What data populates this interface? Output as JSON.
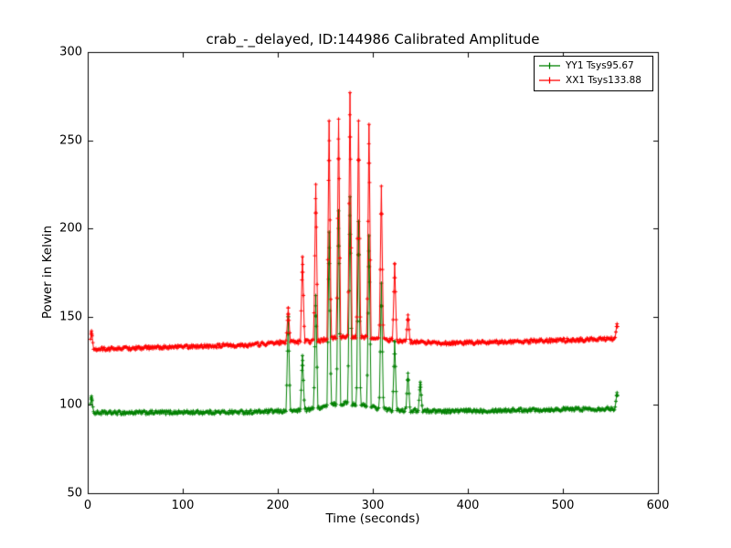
{
  "figure": {
    "title": "crab_-_delayed, ID:144986 Calibrated Amplitude",
    "xlabel": "Time (seconds)",
    "ylabel": "Power in Kelvin"
  },
  "chart_data": {
    "type": "line",
    "title": "crab_-_delayed, ID:144986 Calibrated Amplitude",
    "xlabel": "Time (seconds)",
    "ylabel": "Power in Kelvin",
    "xlim": [
      0,
      600
    ],
    "ylim": [
      50,
      300
    ],
    "xticks": [
      0,
      100,
      200,
      300,
      400,
      500,
      600
    ],
    "yticks": [
      50,
      100,
      150,
      200,
      250,
      300
    ],
    "grid": false,
    "marker": "+",
    "legend_position": "upper right",
    "x_start": 3,
    "x_end": 558,
    "sample_step": 0.8,
    "noise_amplitude": 1.1,
    "spike_half_width_s": 2.2,
    "series": [
      {
        "name": "YY1 Tsys95.67",
        "color": "#008000",
        "tsys": 95.67,
        "baseline_points": [
          [
            3,
            95.5
          ],
          [
            100,
            95.8
          ],
          [
            170,
            96
          ],
          [
            210,
            96.5
          ],
          [
            235,
            97.5
          ],
          [
            255,
            100
          ],
          [
            272,
            101
          ],
          [
            290,
            100
          ],
          [
            305,
            98
          ],
          [
            320,
            97
          ],
          [
            380,
            96.5
          ],
          [
            460,
            97.2
          ],
          [
            557,
            98
          ]
        ],
        "spikes": [
          [
            4,
            105
          ],
          [
            211,
            150
          ],
          [
            226,
            128
          ],
          [
            240,
            162
          ],
          [
            254,
            198
          ],
          [
            264,
            210
          ],
          [
            276,
            218
          ],
          [
            285,
            204
          ],
          [
            296,
            196
          ],
          [
            309,
            169
          ],
          [
            323,
            136
          ],
          [
            337,
            118
          ],
          [
            350,
            113
          ],
          [
            557,
            107
          ]
        ]
      },
      {
        "name": "XX1 Tsys133.88",
        "color": "#ff0000",
        "tsys": 133.88,
        "baseline_points": [
          [
            3,
            131.5
          ],
          [
            100,
            133
          ],
          [
            170,
            134
          ],
          [
            205,
            135.5
          ],
          [
            240,
            136
          ],
          [
            260,
            138
          ],
          [
            280,
            139
          ],
          [
            300,
            138
          ],
          [
            330,
            136
          ],
          [
            380,
            135
          ],
          [
            460,
            136
          ],
          [
            557,
            137.5
          ]
        ],
        "spikes": [
          [
            4,
            142
          ],
          [
            211,
            155
          ],
          [
            226,
            184
          ],
          [
            240,
            225
          ],
          [
            254,
            261
          ],
          [
            264,
            262
          ],
          [
            276,
            277
          ],
          [
            285,
            261
          ],
          [
            296,
            259
          ],
          [
            309,
            224
          ],
          [
            323,
            180
          ],
          [
            337,
            151
          ],
          [
            557,
            146
          ]
        ]
      }
    ]
  }
}
